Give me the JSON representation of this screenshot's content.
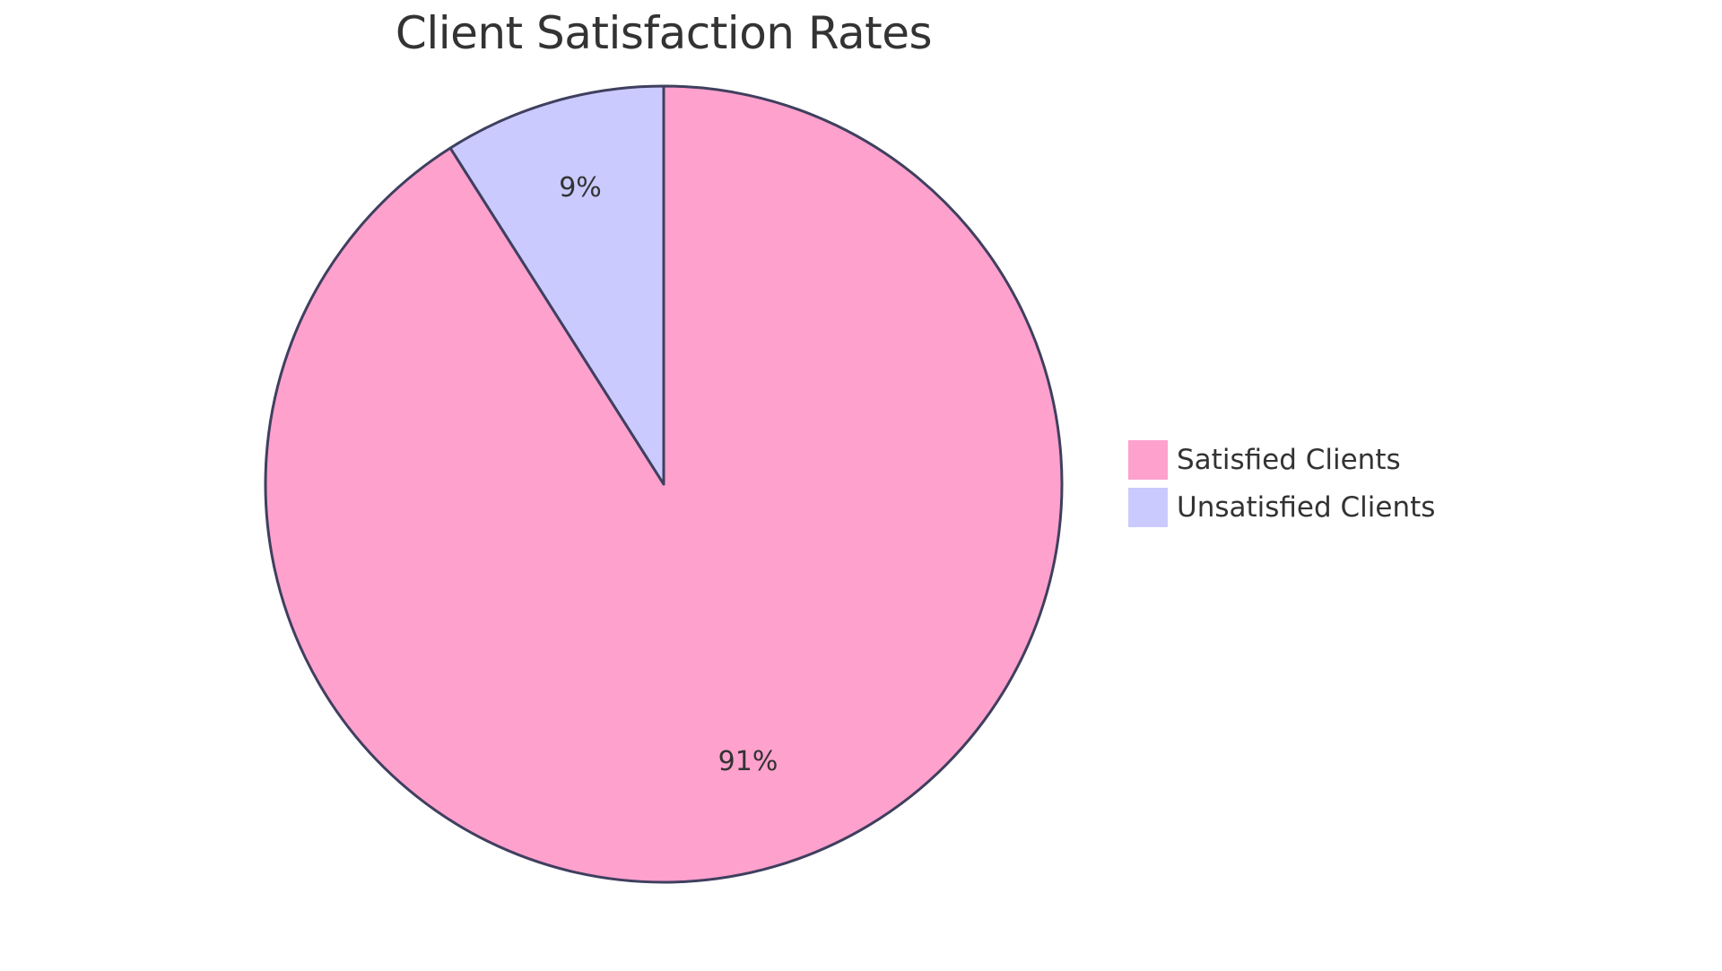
{
  "chart_data": {
    "type": "pie",
    "title": "Client Satisfaction Rates",
    "categories": [
      "Satisfied Clients",
      "Unsatisfied Clients"
    ],
    "values": [
      91,
      9
    ],
    "labels": [
      "91%",
      "9%"
    ],
    "colors": [
      "#FFA1CD",
      "#CACAFF"
    ],
    "stroke_color": "#3F3F5F",
    "legend_position": "right"
  },
  "title": "Client Satisfaction Rates",
  "legend": {
    "items": [
      {
        "label": "Satisfied Clients",
        "color": "#FFA1CD"
      },
      {
        "label": "Unsatisfied Clients",
        "color": "#CACAFF"
      }
    ]
  },
  "slices": [
    {
      "label": "91%",
      "value": 91
    },
    {
      "label": "9%",
      "value": 9
    }
  ]
}
